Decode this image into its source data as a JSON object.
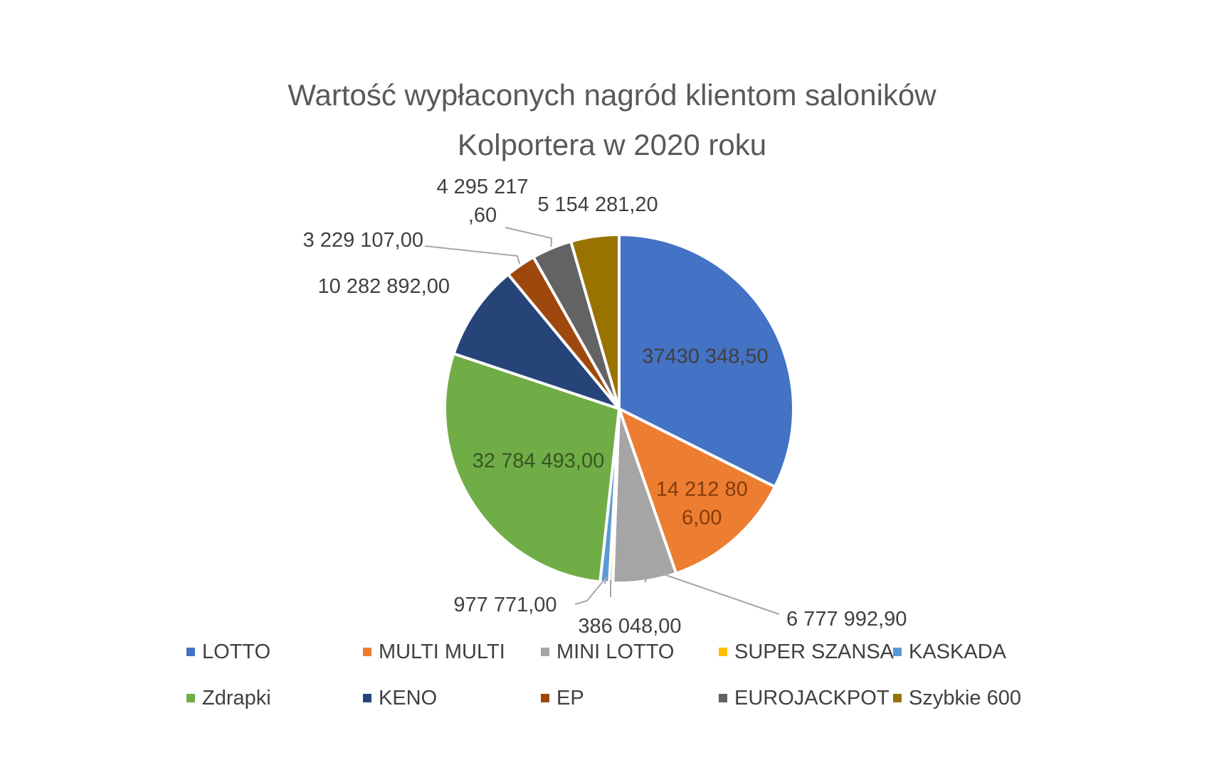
{
  "chart_data": {
    "type": "pie",
    "title_lines": [
      "Wartość wypłaconych nagród klientom saloników",
      "Kolportera w 2020 roku"
    ],
    "categories": [
      "LOTTO",
      "MULTI MULTI",
      "MINI LOTTO",
      "SUPER SZANSA",
      "KASKADA",
      "Zdrapki",
      "KENO",
      "EP",
      "EUROJACKPOT",
      "Szybkie 600"
    ],
    "values": [
      37430348.5,
      14212806.0,
      6777992.9,
      386048.0,
      977771.0,
      32784493.0,
      10282892.0,
      3229107.0,
      4295217.6,
      5154281.2
    ],
    "labels": [
      [
        "37430 348,50"
      ],
      [
        "14 212 80",
        "6,00"
      ],
      [
        "6 777 992,90"
      ],
      [
        "386 048,00"
      ],
      [
        "977 771,00"
      ],
      [
        "32 784 493,00"
      ],
      [
        "10 282 892,00"
      ],
      [
        "3 229 107,00"
      ],
      [
        "4 295 217",
        ",60"
      ],
      [
        "5 154 281,20"
      ]
    ],
    "colors": [
      "#4472C4",
      "#ED7D31",
      "#A5A5A5",
      "#FFC000",
      "#5B9BD5",
      "#70AD47",
      "#264478",
      "#9E480E",
      "#636363",
      "#997300"
    ],
    "label_colors": [
      "#404040",
      "#843C0C",
      "#404040",
      "#404040",
      "#404040",
      "#375623",
      "#404040",
      "#404040",
      "#404040",
      "#404040"
    ],
    "legend": {
      "position": "bottom",
      "rows": [
        [
          0,
          1,
          2,
          3,
          4
        ],
        [
          5,
          6,
          7,
          8,
          9
        ]
      ]
    }
  }
}
